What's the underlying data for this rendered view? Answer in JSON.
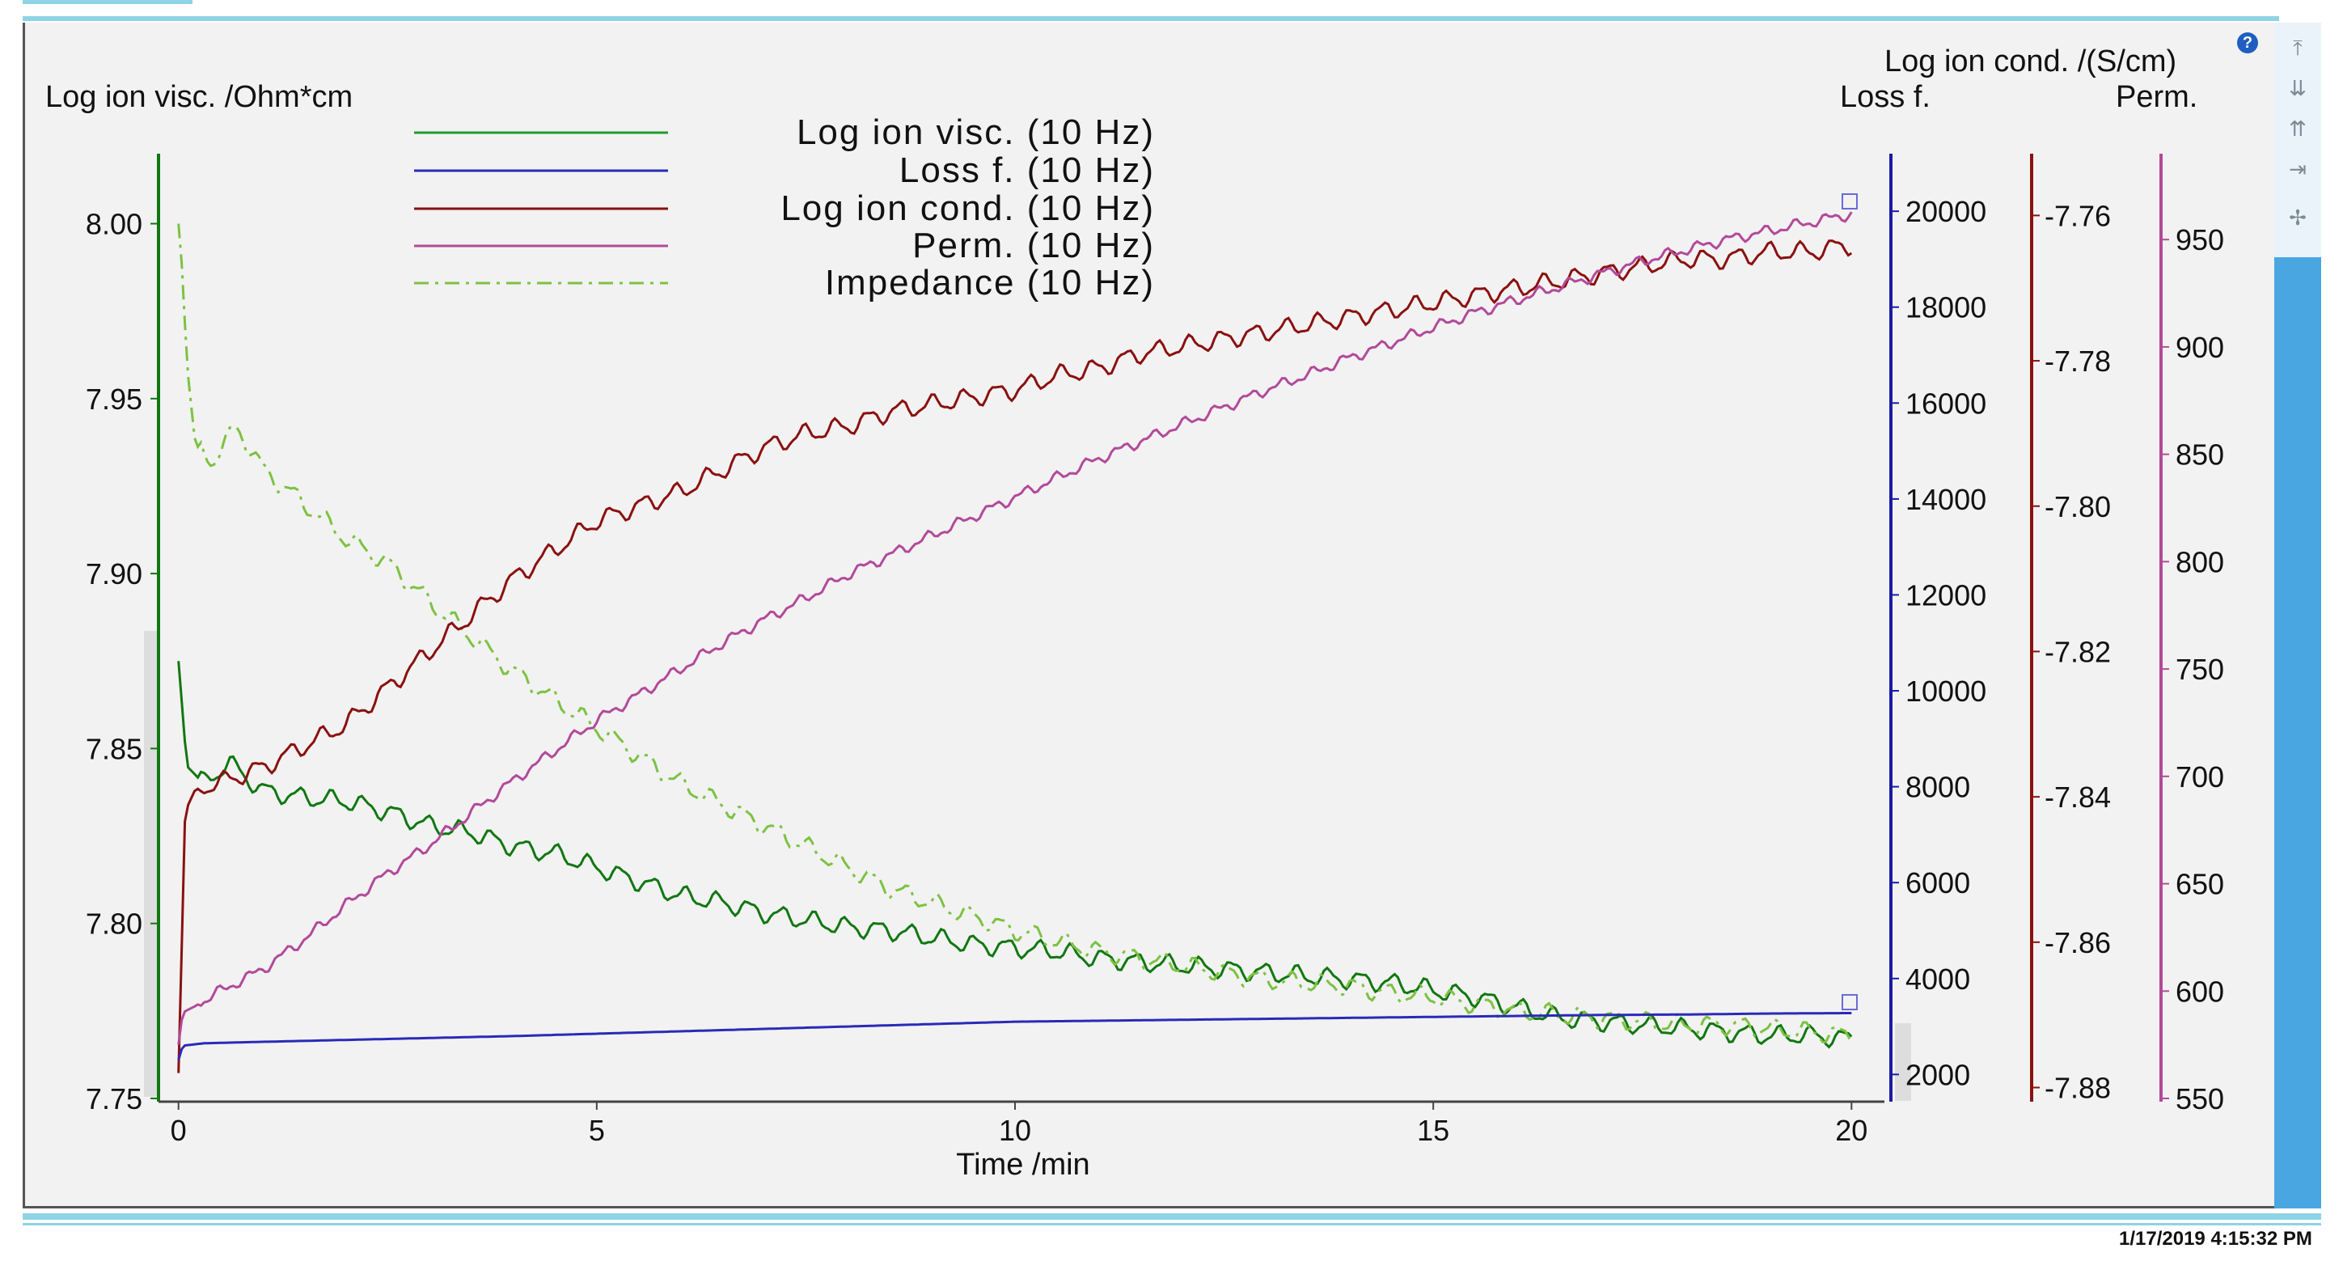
{
  "timestamp": "1/17/2019 4:15:32 PM",
  "help_icon": "?",
  "tool_icons": [
    "zoom-reset-icon",
    "zoom-in-icon",
    "zoom-out-icon",
    "pan-icon",
    "cursor-icon"
  ],
  "chart_data": {
    "type": "line",
    "title": "",
    "xlabel": "Time /min",
    "xlim": [
      -0.2,
      20.2
    ],
    "xticks": [
      0,
      5,
      10,
      15,
      20
    ],
    "axes": {
      "visc": {
        "label": "Log ion visc. /Ohm*cm",
        "range": [
          7.75,
          8.02
        ],
        "ticks": [
          "7.75",
          "7.80",
          "7.85",
          "7.90",
          "7.95",
          "8.00"
        ],
        "color": "#117711"
      },
      "loss": {
        "label": "Loss f.",
        "range": [
          1500,
          21200
        ],
        "ticks": [
          "2000",
          "4000",
          "6000",
          "8000",
          "10000",
          "12000",
          "14000",
          "16000",
          "18000",
          "20000"
        ],
        "color": "#1a1aa6"
      },
      "cond": {
        "label": "Log ion cond. /(S/cm)",
        "range": [
          -7.8815,
          -7.7515
        ],
        "ticks": [
          "-7.88",
          "-7.86",
          "-7.84",
          "-7.82",
          "-7.80",
          "-7.78",
          "-7.76"
        ],
        "color": "#8b1010"
      },
      "perm": {
        "label": "Perm.",
        "range": [
          550,
          990
        ],
        "ticks": [
          "550",
          "600",
          "650",
          "700",
          "750",
          "800",
          "850",
          "900",
          "950"
        ],
        "color": "#b24a9a"
      }
    },
    "legend": [
      {
        "name": "Log ion visc. (10 Hz)",
        "color": "#1f9a2a",
        "dash": ""
      },
      {
        "name": "Loss f. (10 Hz)",
        "color": "#2a2ab8",
        "dash": ""
      },
      {
        "name": "Log ion cond. (10 Hz)",
        "color": "#8b1010",
        "dash": ""
      },
      {
        "name": "Perm. (10 Hz)",
        "color": "#b24a9a",
        "dash": ""
      },
      {
        "name": "Impedance (10 Hz)",
        "color": "#7cc242",
        "dash": "18,8,4,8"
      }
    ],
    "series": [
      {
        "name": "Log ion visc. (10 Hz)",
        "axis": "visc",
        "color": "#117711",
        "dash": "",
        "x": [
          0,
          0.1,
          0.3,
          0.6,
          1,
          1.5,
          2,
          2.5,
          3,
          3.5,
          4,
          4.5,
          5,
          5.5,
          6,
          6.5,
          7,
          7.5,
          8,
          8.5,
          9,
          9.5,
          10,
          10.5,
          11,
          11.5,
          12,
          12.5,
          13,
          13.5,
          14,
          14.5,
          15,
          15.5,
          16,
          16.5,
          17,
          17.5,
          18,
          18.5,
          19,
          19.5,
          20
        ],
        "y": [
          7.875,
          7.845,
          7.84,
          7.846,
          7.838,
          7.836,
          7.835,
          7.832,
          7.828,
          7.826,
          7.822,
          7.82,
          7.816,
          7.812,
          7.808,
          7.806,
          7.803,
          7.801,
          7.799,
          7.798,
          7.796,
          7.794,
          7.793,
          7.792,
          7.79,
          7.789,
          7.788,
          7.787,
          7.786,
          7.785,
          7.784,
          7.783,
          7.781,
          7.779,
          7.776,
          7.773,
          7.772,
          7.771,
          7.77,
          7.769,
          7.768,
          7.768,
          7.767
        ]
      },
      {
        "name": "Impedance (10 Hz)",
        "axis": "visc",
        "color": "#7cc242",
        "dash": "18,8,4,8",
        "x": [
          0,
          0.05,
          0.1,
          0.2,
          0.4,
          0.7,
          1,
          1.5,
          2,
          2.5,
          3,
          3.5,
          4,
          4.5,
          5,
          5.5,
          6,
          6.5,
          7,
          7.5,
          8,
          8.5,
          9,
          9.5,
          10,
          10.5,
          11,
          11.5,
          12,
          12.5,
          13,
          13.5,
          14,
          14.5,
          15,
          15.5,
          16,
          16.5,
          17,
          17.5,
          18,
          18.5,
          19,
          19.5,
          20
        ],
        "y": [
          8.0,
          7.985,
          7.96,
          7.937,
          7.932,
          7.942,
          7.93,
          7.92,
          7.91,
          7.903,
          7.892,
          7.882,
          7.872,
          7.864,
          7.856,
          7.848,
          7.84,
          7.834,
          7.828,
          7.822,
          7.816,
          7.81,
          7.806,
          7.802,
          7.798,
          7.795,
          7.792,
          7.79,
          7.788,
          7.786,
          7.784,
          7.783,
          7.782,
          7.78,
          7.779,
          7.777,
          7.775,
          7.774,
          7.773,
          7.772,
          7.771,
          7.771,
          7.77,
          7.769,
          7.768
        ]
      },
      {
        "name": "Log ion cond. (10 Hz)",
        "axis": "cond",
        "color": "#8b1010",
        "dash": "",
        "x": [
          0,
          0.08,
          0.2,
          0.5,
          1,
          1.5,
          2,
          2.5,
          3,
          3.5,
          4,
          4.5,
          5,
          5.5,
          6,
          6.5,
          7,
          7.5,
          8,
          8.5,
          9,
          9.5,
          10,
          10.5,
          11,
          11.5,
          12,
          12.5,
          13,
          13.5,
          14,
          14.5,
          15,
          15.5,
          16,
          16.5,
          17,
          17.5,
          18,
          18.5,
          19,
          19.5,
          20
        ],
        "y": [
          -7.878,
          -7.842,
          -7.839,
          -7.838,
          -7.836,
          -7.833,
          -7.83,
          -7.825,
          -7.82,
          -7.815,
          -7.81,
          -7.806,
          -7.802,
          -7.8,
          -7.798,
          -7.795,
          -7.792,
          -7.79,
          -7.789,
          -7.787,
          -7.786,
          -7.785,
          -7.784,
          -7.782,
          -7.781,
          -7.779,
          -7.778,
          -7.777,
          -7.776,
          -7.775,
          -7.774,
          -7.773,
          -7.772,
          -7.771,
          -7.77,
          -7.769,
          -7.768,
          -7.767,
          -7.766,
          -7.766,
          -7.765,
          -7.765,
          -7.764
        ]
      },
      {
        "name": "Perm. (10 Hz)",
        "axis": "perm",
        "color": "#b24a9a",
        "dash": "",
        "x": [
          0,
          0.05,
          0.2,
          0.5,
          1,
          1.5,
          2,
          2.5,
          3,
          3.5,
          4,
          4.5,
          5,
          5.5,
          6,
          6.5,
          7,
          7.5,
          8,
          8.5,
          9,
          9.5,
          10,
          10.5,
          11,
          11.5,
          12,
          12.5,
          13,
          13.5,
          14,
          14.5,
          15,
          15.5,
          16,
          16.5,
          17,
          17.5,
          18,
          18.5,
          19,
          19.5,
          20
        ],
        "y": [
          575,
          590,
          593,
          600,
          610,
          624,
          640,
          655,
          668,
          683,
          698,
          712,
          726,
          738,
          750,
          762,
          773,
          783,
          794,
          803,
          812,
          821,
          830,
          839,
          848,
          856,
          864,
          872,
          880,
          887,
          895,
          902,
          909,
          916,
          922,
          928,
          934,
          940,
          945,
          950,
          954,
          958,
          962
        ]
      },
      {
        "name": "Loss f. (10 Hz)",
        "axis": "loss",
        "color": "#2a2ab8",
        "dash": "",
        "x": [
          0,
          0.05,
          0.3,
          1,
          2,
          3,
          4,
          5,
          6,
          7,
          8,
          9,
          10,
          11,
          12,
          13,
          14,
          15,
          16,
          17,
          18,
          19,
          20
        ],
        "y": [
          2300,
          2600,
          2650,
          2680,
          2720,
          2760,
          2800,
          2850,
          2900,
          2950,
          3000,
          3050,
          3100,
          3120,
          3140,
          3160,
          3180,
          3200,
          3220,
          3240,
          3250,
          3270,
          3280
        ]
      }
    ]
  }
}
